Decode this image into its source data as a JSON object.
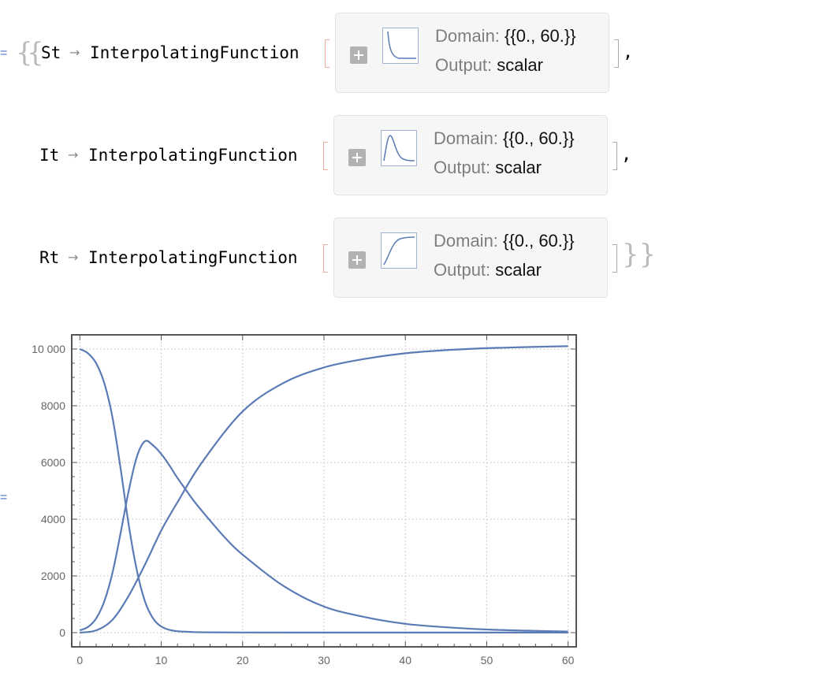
{
  "output_marker": "=",
  "rules": [
    {
      "symbol": "St",
      "function": "InterpolatingFunction",
      "domain_label": "Domain:",
      "domain_value": "{{0., 60.}}",
      "output_label": "Output:",
      "output_value": "scalar",
      "thumb_icon": "decaying-curve-icon",
      "after": ","
    },
    {
      "symbol": "It",
      "function": "InterpolatingFunction",
      "domain_label": "Domain:",
      "domain_value": "{{0., 60.}}",
      "output_label": "Output:",
      "output_value": "scalar",
      "thumb_icon": "peak-curve-icon",
      "after": ","
    },
    {
      "symbol": "Rt",
      "function": "InterpolatingFunction",
      "domain_label": "Domain:",
      "domain_value": "{{0., 60.}}",
      "output_label": "Output:",
      "output_value": "scalar",
      "thumb_icon": "rising-curve-icon",
      "after": ""
    }
  ],
  "arrow_symbol": "→",
  "closing_braces": "}}",
  "colors": {
    "curve": "#5a7bb5",
    "panel_bg": "#f6f6f6",
    "frame": "#555555"
  },
  "chart_data": {
    "type": "line",
    "title": "",
    "xlabel": "",
    "ylabel": "",
    "xlim": [
      -1,
      61
    ],
    "ylim": [
      -500,
      10500
    ],
    "x_ticks": [
      0,
      10,
      20,
      30,
      40,
      50,
      60
    ],
    "y_ticks": [
      0,
      2000,
      4000,
      6000,
      8000,
      10000
    ],
    "x_tick_labels": [
      "0",
      "10",
      "20",
      "30",
      "40",
      "50",
      "60"
    ],
    "y_tick_labels": [
      "0",
      "2000",
      "4000",
      "6000",
      "8000",
      "10 000"
    ],
    "grid": true,
    "legend": "none",
    "series": [
      {
        "x": [
          0,
          1,
          2,
          3,
          4,
          5,
          6,
          7,
          8,
          9,
          10,
          11,
          12,
          14,
          16,
          20,
          30,
          40,
          50,
          60
        ],
        "values": [
          10000,
          9850,
          9500,
          8800,
          7600,
          5800,
          3800,
          2200,
          1100,
          500,
          220,
          100,
          50,
          20,
          10,
          5,
          3,
          2,
          2,
          2
        ]
      },
      {
        "x": [
          0,
          1,
          2,
          3,
          4,
          5,
          6,
          7,
          8,
          9,
          10,
          11,
          12,
          14,
          16,
          18,
          20,
          25,
          30,
          35,
          40,
          45,
          50,
          55,
          60
        ],
        "values": [
          80,
          200,
          500,
          1100,
          2100,
          3500,
          5000,
          6200,
          6750,
          6600,
          6300,
          5900,
          5450,
          4650,
          3950,
          3300,
          2750,
          1650,
          920,
          550,
          310,
          190,
          110,
          70,
          40
        ]
      },
      {
        "x": [
          0,
          2,
          4,
          6,
          8,
          10,
          12,
          15,
          20,
          25,
          30,
          35,
          40,
          45,
          50,
          55,
          60
        ],
        "values": [
          0,
          80,
          450,
          1300,
          2400,
          3600,
          4600,
          6000,
          7800,
          8800,
          9350,
          9650,
          9850,
          9960,
          10030,
          10070,
          10100
        ]
      }
    ]
  }
}
